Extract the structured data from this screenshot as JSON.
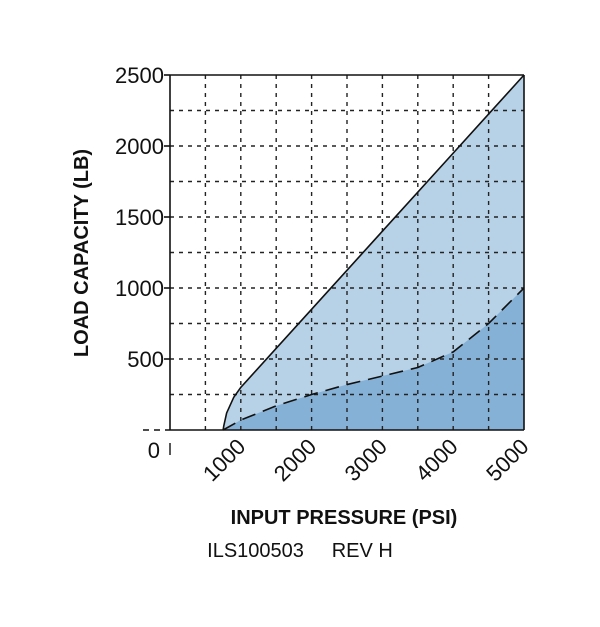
{
  "chart_data": {
    "type": "area",
    "title": "",
    "xlabel": "INPUT PRESSURE (PSI)",
    "ylabel": "LOAD CAPACITY (LB)",
    "xlim": [
      0,
      5000
    ],
    "ylim": [
      0,
      2500
    ],
    "x_ticks": [
      "0",
      "1000",
      "2000",
      "3000",
      "4000",
      "5000"
    ],
    "y_ticks": [
      "0",
      "500",
      "1000",
      "1500",
      "2000",
      "2500"
    ],
    "grid": true,
    "series": [
      {
        "line_style": "solid",
        "fill": "#b7d1e6",
        "x": [
          750,
          760,
          800,
          900,
          1000,
          2000,
          3000,
          4000,
          5000
        ],
        "y": [
          0,
          30,
          120,
          230,
          300,
          850,
          1400,
          1950,
          2500
        ]
      },
      {
        "line_style": "dashed",
        "fill": "#86b1d6",
        "x": [
          750,
          1000,
          1500,
          2000,
          2500,
          3000,
          3500,
          4000,
          4500,
          5000
        ],
        "y": [
          0,
          70,
          170,
          250,
          320,
          380,
          440,
          550,
          750,
          1000
        ]
      }
    ]
  },
  "footer": {
    "id": "ILS100503",
    "rev": "REV H"
  }
}
